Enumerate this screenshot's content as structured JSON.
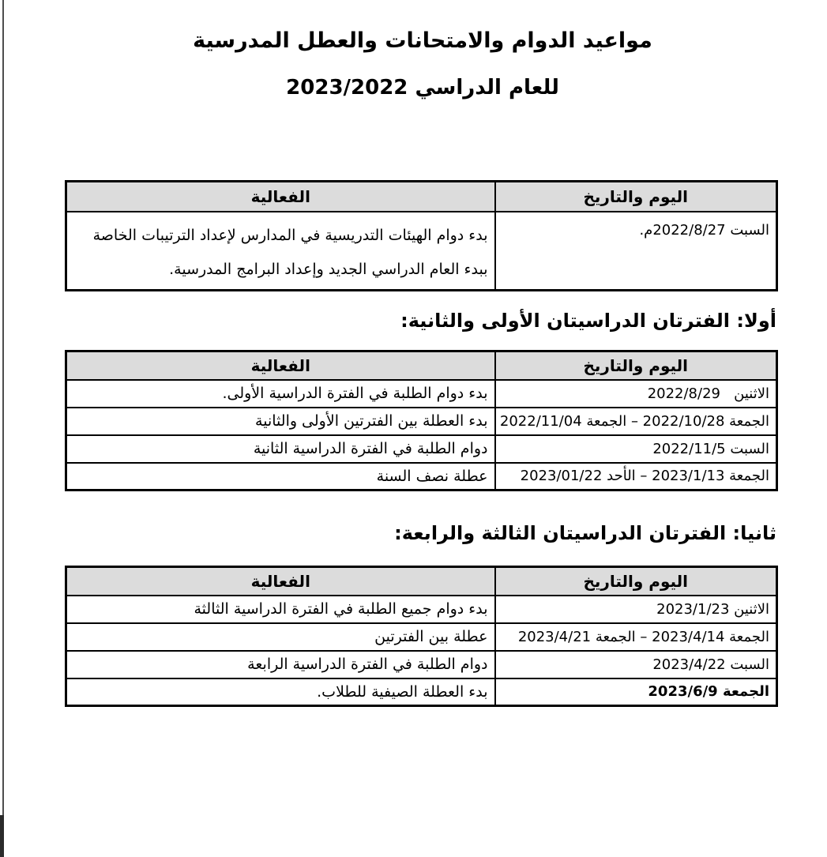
{
  "document": {
    "title_line1": "مواعيد الدوام والامتحانات والعطل المدرسية",
    "title_line2": "للعام الدراسي 2023/2022",
    "column_headers": {
      "activity": "الفعالية",
      "day_date": "اليوم والتاريخ"
    },
    "intro_table": {
      "rows": [
        {
          "day_date": "السبت 2022/8/27م.",
          "activity": "بدء دوام الهيئات التدريسية في المدارس لإعداد الترتيبات الخاصة ببدء العام الدراسي الجديد وإعداد البرامج المدرسية."
        }
      ]
    },
    "section1": {
      "heading": "أولا: الفترتان الدراسيتان الأولى والثانية:",
      "rows": [
        {
          "day_date": "الاثنين   2022/8/29",
          "activity": "بدء دوام الطلبة في الفترة الدراسية الأولى."
        },
        {
          "day_date": "الجمعة 2022/10/28 – الجمعة 2022/11/04",
          "activity": "بدء العطلة بين الفترتين الأولى والثانية"
        },
        {
          "day_date": "السبت 2022/11/5",
          "activity": "دوام الطلبة في الفترة الدراسية الثانية"
        },
        {
          "day_date": "الجمعة 2023/1/13 – الأحد 2023/01/22",
          "activity": "عطلة نصف السنة"
        }
      ]
    },
    "section2": {
      "heading": "ثانيا: الفترتان الدراسيتان الثالثة والرابعة:",
      "rows": [
        {
          "day_date": "الاثنين 2023/1/23",
          "activity": "بدء دوام جميع الطلبة في الفترة الدراسية الثالثة"
        },
        {
          "day_date": "الجمعة 2023/4/14 – الجمعة 2023/4/21",
          "activity": "عطلة بين الفترتين"
        },
        {
          "day_date": "السبت 2023/4/22",
          "activity": "دوام الطلبة في الفترة الدراسية الرابعة"
        },
        {
          "day_date": "الجمعة 2023/6/9",
          "activity": "بدء العطلة الصيفية للطلاب."
        }
      ]
    }
  },
  "colors": {
    "page_bg": "#ffffff",
    "text": "#000000",
    "table_border": "#000000",
    "table_header_bg": "#dcdcdc"
  }
}
